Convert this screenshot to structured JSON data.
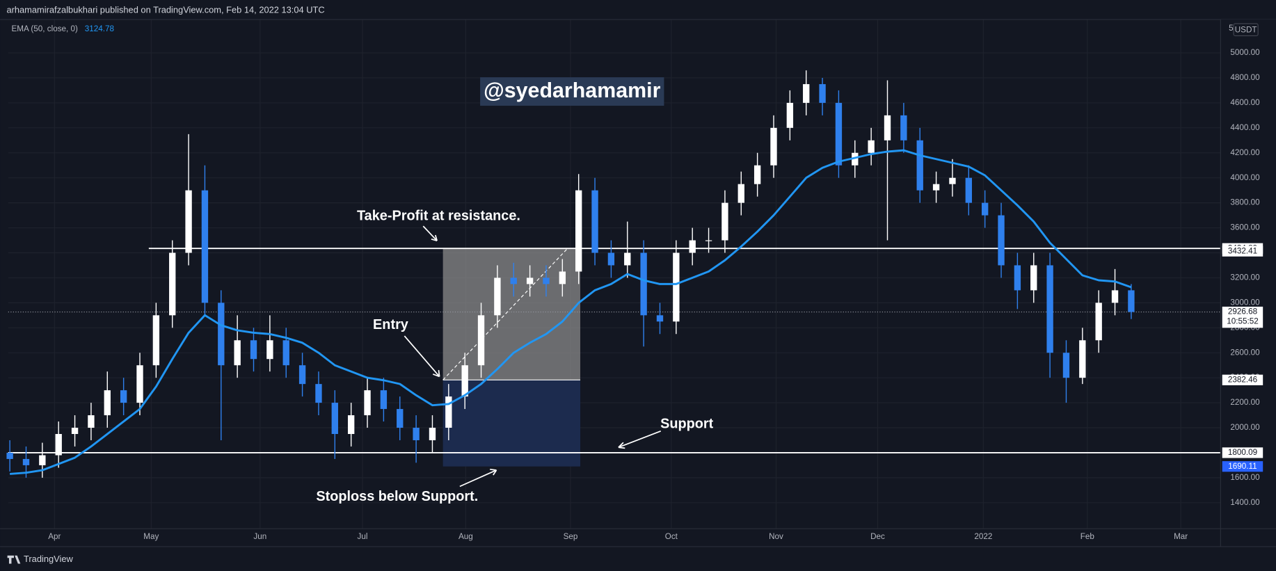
{
  "header": {
    "title": "arhamamirafzalbukhari published on TradingView.com, Feb 14, 2022 13:04 UTC"
  },
  "footer": {
    "brand": "TradingView"
  },
  "watermark": "@syedarhamamir",
  "axis_corner": {
    "scale": "5",
    "currency": "USDT"
  },
  "annotations": {
    "take_profit": "Take-Profit at resistance.",
    "entry": "Entry",
    "support": "Support",
    "stoploss": "Stoploss below Support."
  },
  "chart_data": {
    "type": "candlestick",
    "categories": [
      null,
      null,
      null,
      null,
      null,
      null,
      null,
      null,
      null,
      null,
      null,
      null,
      null,
      null,
      null,
      null,
      null,
      null,
      null,
      null,
      null,
      null,
      null,
      null,
      null,
      null,
      null,
      null,
      null,
      null,
      null,
      null,
      null,
      null,
      null,
      null,
      null,
      null,
      null,
      null,
      null,
      null,
      null,
      null,
      null,
      null,
      null,
      null,
      null,
      null,
      null,
      null,
      null,
      null,
      null,
      null,
      null,
      null,
      null,
      null,
      null,
      null,
      null,
      null,
      null,
      null,
      null,
      null,
      null,
      null
    ],
    "open": [
      1800,
      1750,
      1700,
      1780,
      1950,
      2000,
      2100,
      2300,
      2200,
      2500,
      2900,
      3400,
      3900,
      3000,
      2500,
      2700,
      2550,
      2700,
      2500,
      2350,
      2200,
      1950,
      2100,
      2300,
      2150,
      2000,
      1900,
      2000,
      2250,
      2500,
      2900,
      3200,
      3150,
      3200,
      3150,
      3250,
      3900,
      3400,
      3300,
      3400,
      2900,
      2850,
      3400,
      3500,
      3500,
      3800,
      3950,
      4100,
      4400,
      4600,
      4750,
      4600,
      4100,
      4200,
      4300,
      4500,
      4300,
      3900,
      3950,
      4000,
      3800,
      3700,
      3300,
      3100,
      3300,
      2600,
      2400,
      2700,
      3000,
      3100
    ],
    "high": [
      1900,
      1850,
      1880,
      2050,
      2100,
      2200,
      2450,
      2400,
      2600,
      3000,
      3500,
      4350,
      4100,
      3100,
      2900,
      2800,
      2900,
      2800,
      2600,
      2450,
      2300,
      2200,
      2400,
      2400,
      2250,
      2100,
      2100,
      2350,
      2600,
      3000,
      3300,
      3320,
      3300,
      3300,
      3350,
      4030,
      4000,
      3500,
      3650,
      3500,
      3000,
      3500,
      3600,
      3600,
      3900,
      4050,
      4200,
      4500,
      4700,
      4860,
      4800,
      4700,
      4300,
      4400,
      4780,
      4600,
      4400,
      4050,
      4150,
      4100,
      3900,
      3800,
      3400,
      3400,
      3400,
      2700,
      2800,
      3100,
      3270,
      3150
    ],
    "low": [
      1650,
      1600,
      1600,
      1680,
      1850,
      1900,
      2000,
      2100,
      2100,
      2400,
      2800,
      3300,
      2900,
      1900,
      2400,
      2450,
      2450,
      2400,
      2250,
      2100,
      1750,
      1850,
      2000,
      2050,
      1900,
      1720,
      1800,
      1900,
      2150,
      2400,
      2800,
      3050,
      3050,
      3050,
      3050,
      3150,
      3300,
      3200,
      3200,
      2650,
      2750,
      2750,
      3300,
      3400,
      3400,
      3700,
      3850,
      4000,
      4300,
      4500,
      4500,
      4000,
      4000,
      4100,
      3500,
      4200,
      3800,
      3800,
      3850,
      3700,
      3600,
      3200,
      2950,
      3000,
      2400,
      2200,
      2350,
      2600,
      2900,
      2870
    ],
    "close": [
      1750,
      1700,
      1780,
      1950,
      2000,
      2100,
      2300,
      2200,
      2500,
      2900,
      3400,
      3900,
      3000,
      2500,
      2700,
      2550,
      2700,
      2500,
      2350,
      2200,
      1950,
      2100,
      2300,
      2150,
      2000,
      1900,
      2000,
      2250,
      2500,
      2900,
      3200,
      3150,
      3200,
      3150,
      3250,
      3900,
      3400,
      3300,
      3400,
      2900,
      2850,
      3400,
      3500,
      3500,
      3800,
      3950,
      4100,
      4400,
      4600,
      4750,
      4600,
      4100,
      4200,
      4300,
      4500,
      4300,
      3900,
      3950,
      4000,
      3800,
      3700,
      3300,
      3100,
      3300,
      2600,
      2400,
      2700,
      3000,
      3100,
      2926.68
    ],
    "up_color": "#ffffff",
    "down_color": "#2f80ed",
    "ema": {
      "name": "EMA (50, close, 0)",
      "color": "#2196f3",
      "values": [
        1630,
        1640,
        1660,
        1710,
        1760,
        1850,
        1950,
        2050,
        2150,
        2330,
        2550,
        2760,
        2900,
        2820,
        2780,
        2760,
        2750,
        2720,
        2680,
        2600,
        2500,
        2450,
        2400,
        2380,
        2350,
        2260,
        2180,
        2190,
        2260,
        2350,
        2470,
        2600,
        2680,
        2750,
        2850,
        3000,
        3100,
        3150,
        3230,
        3180,
        3150,
        3150,
        3200,
        3250,
        3340,
        3450,
        3570,
        3700,
        3850,
        4000,
        4080,
        4130,
        4160,
        4190,
        4210,
        4220,
        4180,
        4150,
        4120,
        4090,
        4020,
        3900,
        3780,
        3650,
        3480,
        3350,
        3220,
        3180,
        3170,
        3124.78
      ]
    },
    "levels": [
      {
        "value": 3434.89,
        "from": 8.55
      },
      {
        "value": 1800.09,
        "from": -0.1
      }
    ],
    "position": {
      "entry": 2382.46,
      "target": 3432.41,
      "stop": 1690.11,
      "from": 26.65,
      "to": 35.1
    },
    "countdown": "10:55:52",
    "xlim": [
      -0.1,
      74.5
    ],
    "xticks": [
      {
        "value": 2.75,
        "label": "Apr"
      },
      {
        "value": 8.7,
        "label": "May"
      },
      {
        "value": 15.4,
        "label": "Jun"
      },
      {
        "value": 21.7,
        "label": "Jul"
      },
      {
        "value": 28.05,
        "label": "Aug"
      },
      {
        "value": 34.5,
        "label": "Sep"
      },
      {
        "value": 40.7,
        "label": "Oct"
      },
      {
        "value": 47.15,
        "label": "Nov"
      },
      {
        "value": 53.4,
        "label": "Dec"
      },
      {
        "value": 59.9,
        "label": "2022"
      },
      {
        "value": 66.3,
        "label": "Feb"
      },
      {
        "value": 72.05,
        "label": "Mar"
      }
    ],
    "ylim": [
      1192,
      5280
    ],
    "yticks": [
      {
        "value": 1400,
        "label": "1400.00"
      },
      {
        "value": 1600,
        "label": "1600.00"
      },
      {
        "value": 1800,
        "label": "1800.00"
      },
      {
        "value": 2000,
        "label": "2000.00"
      },
      {
        "value": 2200,
        "label": "2200.00"
      },
      {
        "value": 2400,
        "label": "2400.00"
      },
      {
        "value": 2600,
        "label": "2600.00"
      },
      {
        "value": 2800,
        "label": "2800.00"
      },
      {
        "value": 3000,
        "label": "3000.00"
      },
      {
        "value": 3200,
        "label": "3200.00"
      },
      {
        "value": 3400,
        "label": "3400.00"
      },
      {
        "value": 3600,
        "label": "3600.00"
      },
      {
        "value": 3800,
        "label": "3800.00"
      },
      {
        "value": 4000,
        "label": "4000.00"
      },
      {
        "value": 4200,
        "label": "4200.00"
      },
      {
        "value": 4400,
        "label": "4400.00"
      },
      {
        "value": 4600,
        "label": "4600.00"
      },
      {
        "value": 4800,
        "label": "4800.00"
      },
      {
        "value": 5000,
        "label": "5000.00"
      }
    ],
    "grid": true
  }
}
